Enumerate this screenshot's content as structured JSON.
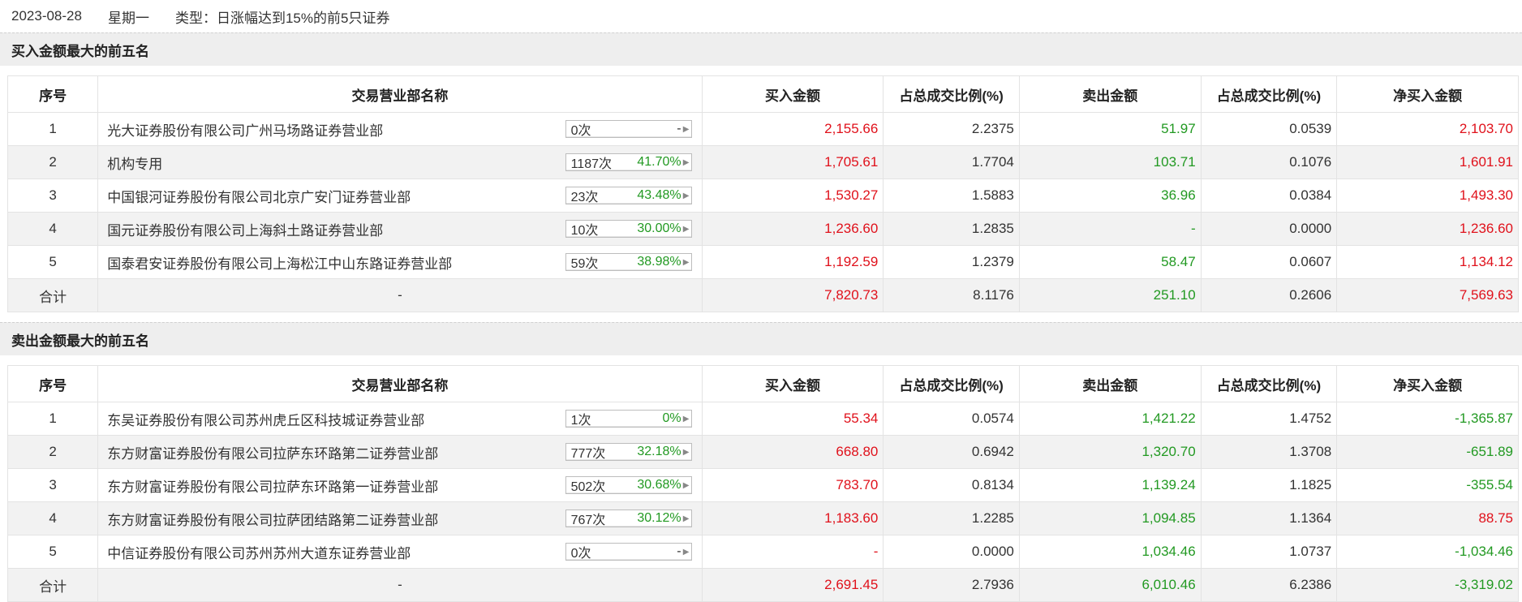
{
  "top": {
    "date": "2023-08-28",
    "weekday": "星期一",
    "type_label": "类型：日涨幅达到15%的前5只证券"
  },
  "columns": [
    "序号",
    "交易营业部名称",
    "买入金额",
    "占总成交比例(%)",
    "卖出金额",
    "占总成交比例(%)",
    "净买入金额"
  ],
  "buy_section": {
    "title": "买入金额最大的前五名",
    "rows": [
      {
        "idx": "1",
        "name": "光大证券股份有限公司广州马场路证券营业部",
        "count": "0次",
        "pct": "-",
        "buy": "2,155.66",
        "buy_ratio": "2.2375",
        "sell": "51.97",
        "sell_ratio": "0.0539",
        "net": "2,103.70",
        "net_color": "red"
      },
      {
        "idx": "2",
        "name": "机构专用",
        "count": "1187次",
        "pct": "41.70%",
        "buy": "1,705.61",
        "buy_ratio": "1.7704",
        "sell": "103.71",
        "sell_ratio": "0.1076",
        "net": "1,601.91",
        "net_color": "red"
      },
      {
        "idx": "3",
        "name": "中国银河证券股份有限公司北京广安门证券营业部",
        "count": "23次",
        "pct": "43.48%",
        "buy": "1,530.27",
        "buy_ratio": "1.5883",
        "sell": "36.96",
        "sell_ratio": "0.0384",
        "net": "1,493.30",
        "net_color": "red"
      },
      {
        "idx": "4",
        "name": "国元证券股份有限公司上海斜土路证券营业部",
        "count": "10次",
        "pct": "30.00%",
        "buy": "1,236.60",
        "buy_ratio": "1.2835",
        "sell": "-",
        "sell_ratio": "0.0000",
        "net": "1,236.60",
        "net_color": "red"
      },
      {
        "idx": "5",
        "name": "国泰君安证券股份有限公司上海松江中山东路证券营业部",
        "count": "59次",
        "pct": "38.98%",
        "buy": "1,192.59",
        "buy_ratio": "1.2379",
        "sell": "58.47",
        "sell_ratio": "0.0607",
        "net": "1,134.12",
        "net_color": "red"
      }
    ],
    "total": {
      "label": "合计",
      "name": "-",
      "buy": "7,820.73",
      "buy_ratio": "8.1176",
      "sell": "251.10",
      "sell_ratio": "0.2606",
      "net": "7,569.63",
      "net_color": "red"
    }
  },
  "sell_section": {
    "title": "卖出金额最大的前五名",
    "rows": [
      {
        "idx": "1",
        "name": "东吴证券股份有限公司苏州虎丘区科技城证券营业部",
        "count": "1次",
        "pct": "0%",
        "buy": "55.34",
        "buy_ratio": "0.0574",
        "sell": "1,421.22",
        "sell_ratio": "1.4752",
        "net": "-1,365.87",
        "net_color": "green"
      },
      {
        "idx": "2",
        "name": "东方财富证券股份有限公司拉萨东环路第二证券营业部",
        "count": "777次",
        "pct": "32.18%",
        "buy": "668.80",
        "buy_ratio": "0.6942",
        "sell": "1,320.70",
        "sell_ratio": "1.3708",
        "net": "-651.89",
        "net_color": "green"
      },
      {
        "idx": "3",
        "name": "东方财富证券股份有限公司拉萨东环路第一证券营业部",
        "count": "502次",
        "pct": "30.68%",
        "buy": "783.70",
        "buy_ratio": "0.8134",
        "sell": "1,139.24",
        "sell_ratio": "1.1825",
        "net": "-355.54",
        "net_color": "green"
      },
      {
        "idx": "4",
        "name": "东方财富证券股份有限公司拉萨团结路第二证券营业部",
        "count": "767次",
        "pct": "30.12%",
        "buy": "1,183.60",
        "buy_ratio": "1.2285",
        "sell": "1,094.85",
        "sell_ratio": "1.1364",
        "net": "88.75",
        "net_color": "red"
      },
      {
        "idx": "5",
        "name": "中信证券股份有限公司苏州苏州大道东证券营业部",
        "count": "0次",
        "pct": "-",
        "buy": "-",
        "buy_ratio": "0.0000",
        "sell": "1,034.46",
        "sell_ratio": "1.0737",
        "net": "-1,034.46",
        "net_color": "green"
      }
    ],
    "total": {
      "label": "合计",
      "name": "-",
      "buy": "2,691.45",
      "buy_ratio": "2.7936",
      "sell": "6,010.46",
      "sell_ratio": "6.2386",
      "net": "-3,319.02",
      "net_color": "green"
    }
  },
  "colors": {
    "up": "#e0111b",
    "down": "#229922",
    "header_bg": "#eeeeee",
    "stripe_bg": "#f2f2f2"
  }
}
